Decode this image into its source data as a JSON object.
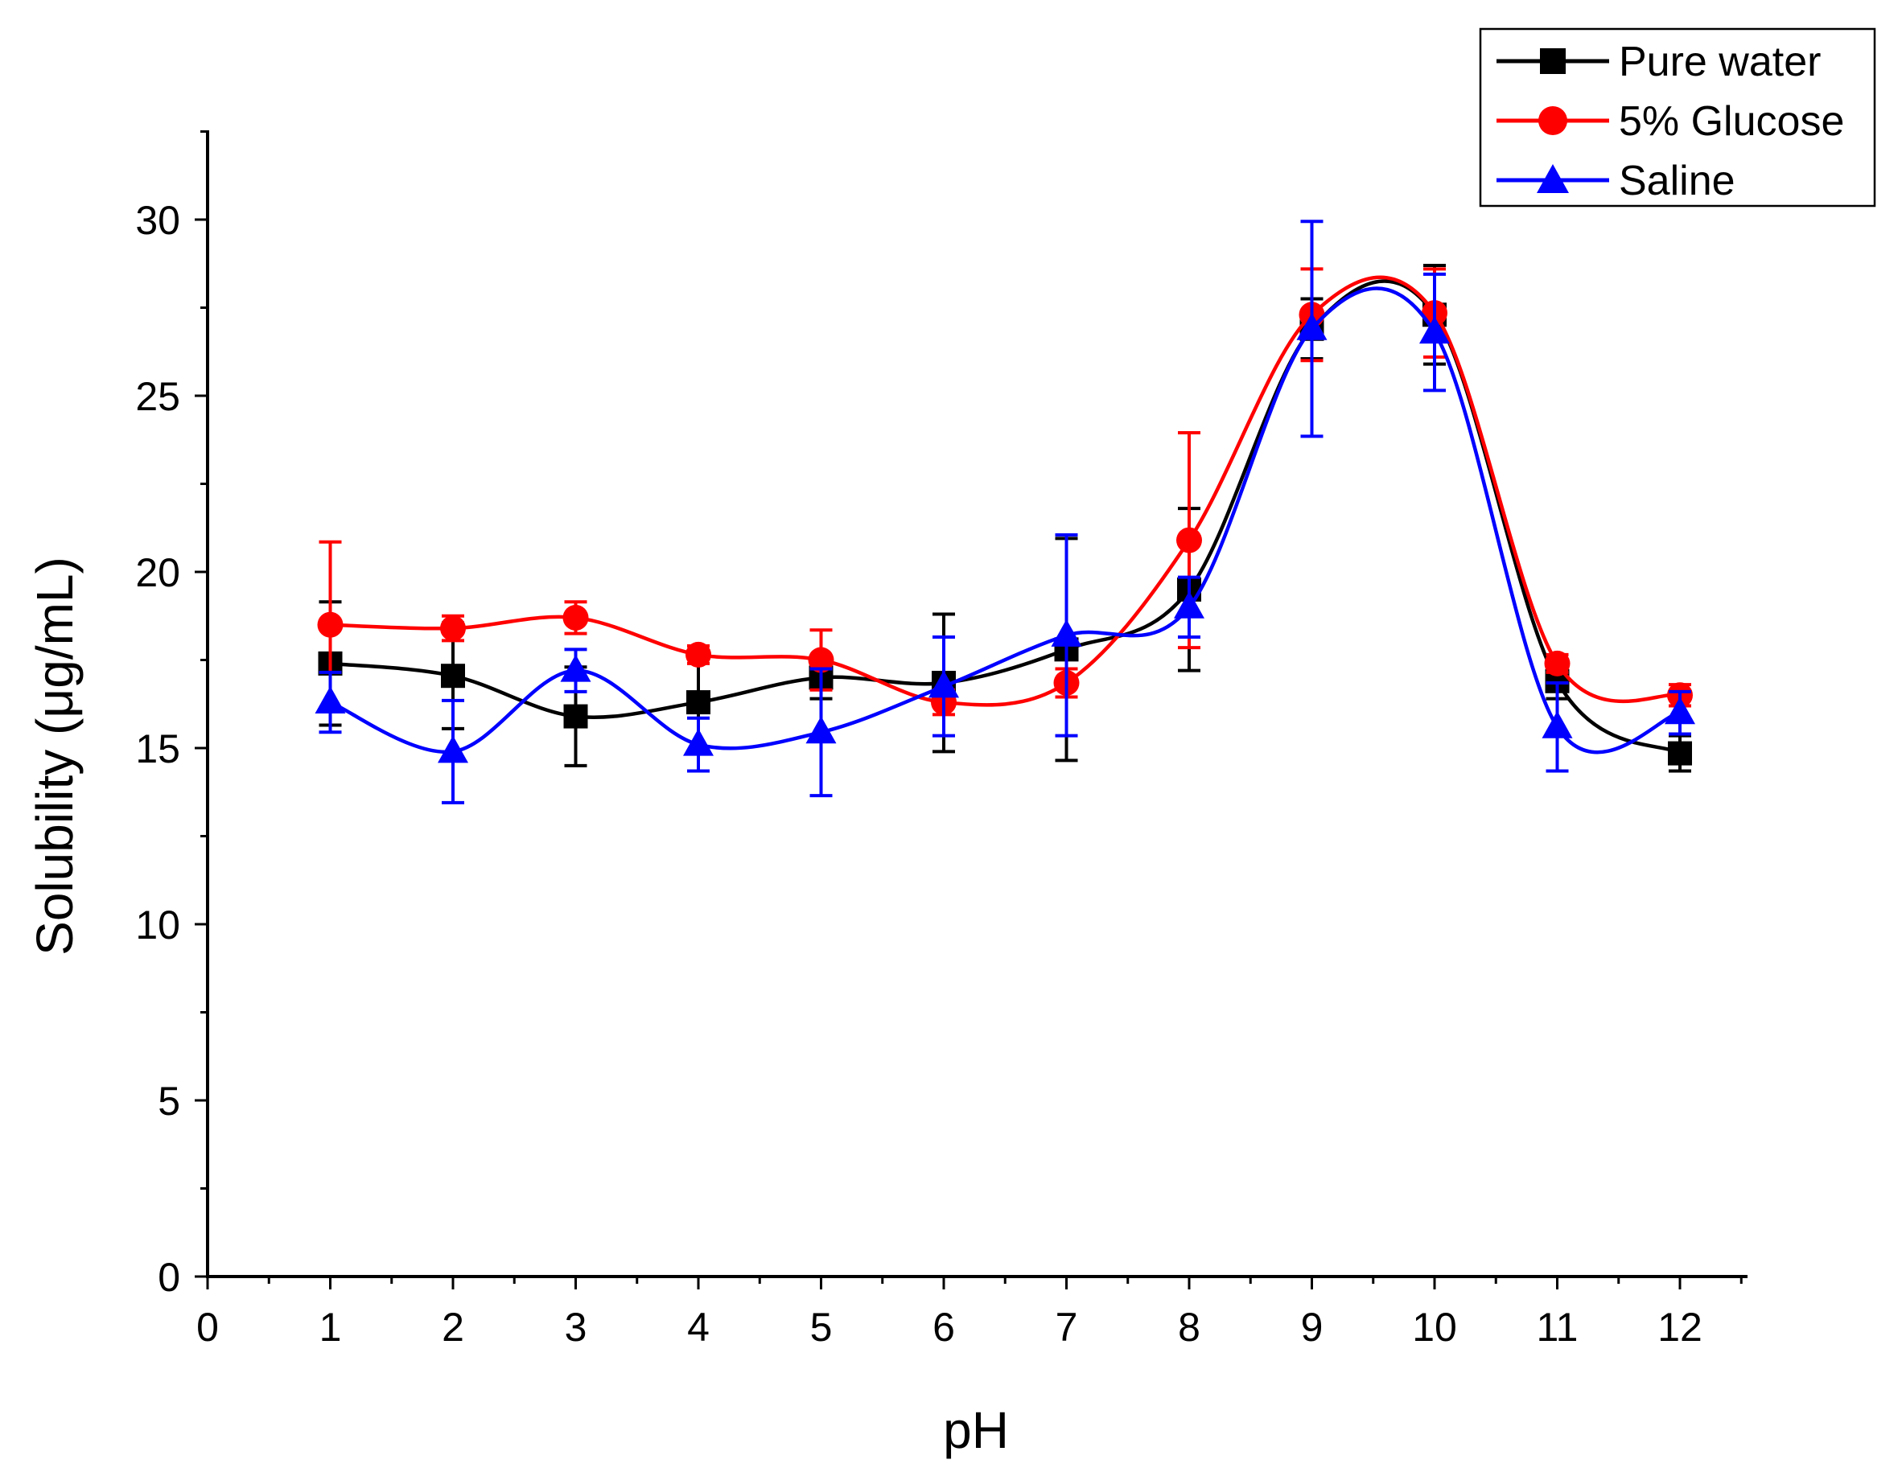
{
  "chart_data": {
    "type": "line",
    "title": "",
    "xlabel": "pH",
    "ylabel": "Solubility (μg/mL)",
    "xlim": [
      0,
      12.6
    ],
    "ylim": [
      0,
      32.5
    ],
    "xticks": [
      0,
      1,
      2,
      3,
      4,
      5,
      6,
      7,
      8,
      9,
      10,
      11,
      12
    ],
    "xtick_labels": [
      "0",
      "1",
      "2",
      "3",
      "4",
      "5",
      "6",
      "7",
      "8",
      "9",
      "10",
      "11",
      "12"
    ],
    "yticks": [
      0,
      5,
      10,
      15,
      20,
      25,
      30
    ],
    "ytick_labels": [
      "0",
      "5",
      "10",
      "15",
      "20",
      "25",
      "30"
    ],
    "grid": false,
    "legend_position": "top-right",
    "curve": "smooth spline",
    "x": [
      1,
      2,
      3,
      4,
      5,
      6,
      7,
      8,
      9,
      10,
      11,
      12
    ],
    "series": [
      {
        "name": "Pure water",
        "color": "#000000",
        "marker": "square",
        "values": [
          17.4,
          17.05,
          15.9,
          16.3,
          17.0,
          16.85,
          17.8,
          19.5,
          26.9,
          27.3,
          16.9,
          14.85
        ],
        "errors": [
          1.75,
          1.5,
          1.4,
          1.4,
          0.6,
          1.95,
          3.15,
          2.3,
          0.85,
          1.4,
          0.5,
          0.5
        ]
      },
      {
        "name": "5% Glucose",
        "color": "#ff0000",
        "marker": "circle",
        "values": [
          18.5,
          18.4,
          18.7,
          17.65,
          17.5,
          16.3,
          16.85,
          20.9,
          27.3,
          27.35,
          17.4,
          16.5
        ],
        "errors": [
          2.35,
          0.35,
          0.45,
          0.25,
          0.85,
          0.35,
          0.4,
          3.05,
          1.3,
          1.25,
          0.25,
          0.3
        ]
      },
      {
        "name": "Saline",
        "color": "#0000ff",
        "marker": "triangle",
        "values": [
          16.3,
          14.9,
          17.2,
          15.1,
          15.45,
          16.75,
          18.2,
          19.0,
          26.9,
          26.8,
          15.6,
          16.0
        ],
        "errors": [
          0.85,
          1.45,
          0.6,
          0.75,
          1.8,
          1.4,
          2.85,
          0.85,
          3.05,
          1.65,
          1.25,
          0.6
        ]
      }
    ]
  }
}
